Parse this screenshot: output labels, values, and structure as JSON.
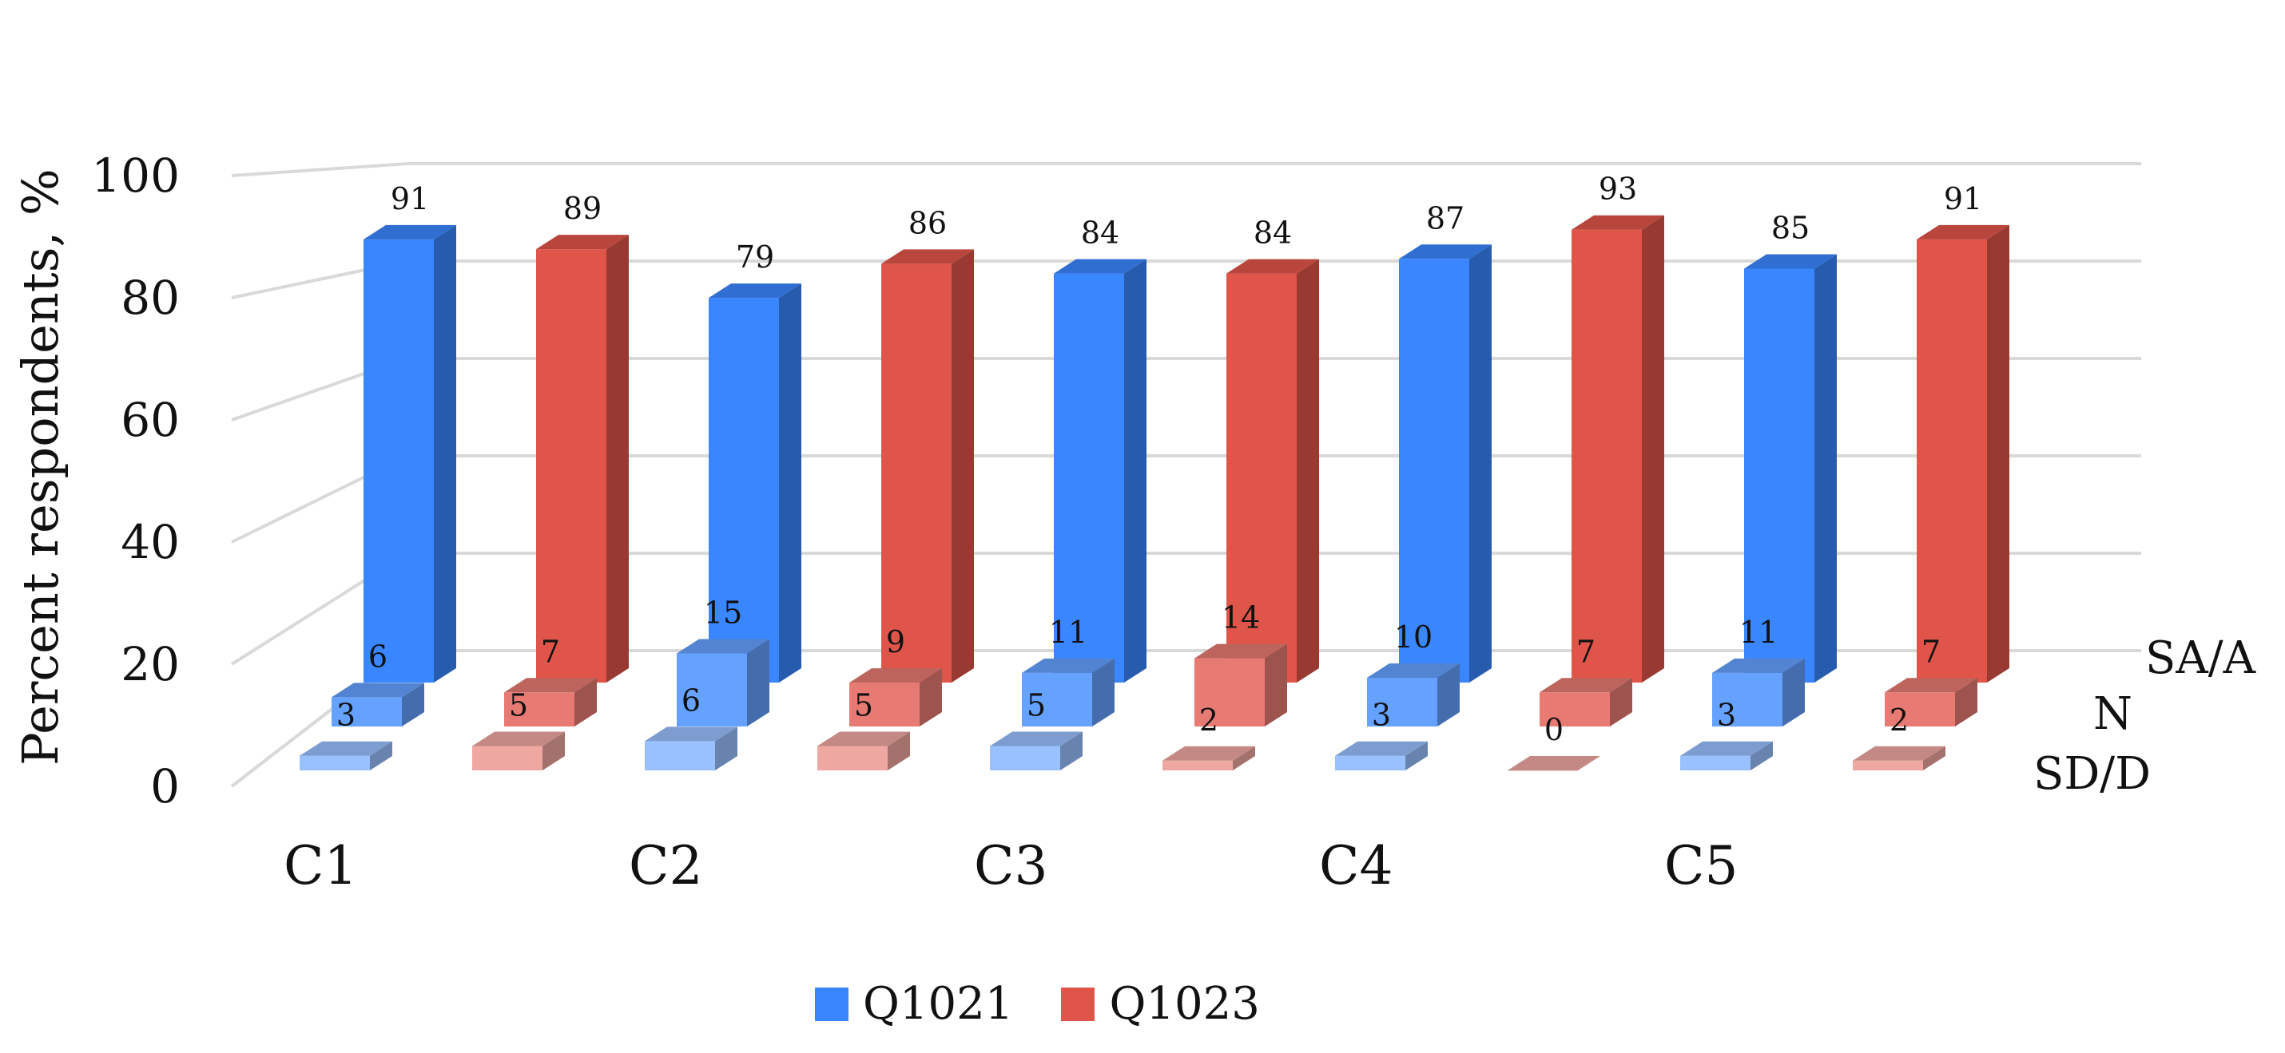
{
  "chart_data": {
    "type": "bar",
    "categories": [
      "C1",
      "C2",
      "C3",
      "C4",
      "C5"
    ],
    "depth_categories": [
      "SA/A",
      "N",
      "SD/D"
    ],
    "ylabel": "Percent respondents, %",
    "yticks": [
      "0",
      "20",
      "40",
      "60",
      "80",
      "100"
    ],
    "ylim": [
      0,
      100
    ],
    "grid": true,
    "legend_position": "bottom",
    "series": [
      {
        "name": "Q1021",
        "color": "#3a86ff",
        "values": {
          "SA/A": [
            91,
            79,
            84,
            87,
            85
          ],
          "N": [
            6,
            15,
            11,
            10,
            11
          ],
          "SD/D": [
            3,
            6,
            5,
            3,
            3
          ]
        }
      },
      {
        "name": "Q1023",
        "color": "#e0554a",
        "values": {
          "SA/A": [
            89,
            86,
            84,
            93,
            91
          ],
          "N": [
            7,
            9,
            14,
            7,
            7
          ],
          "SD/D": [
            5,
            5,
            2,
            0,
            2
          ]
        }
      }
    ]
  }
}
